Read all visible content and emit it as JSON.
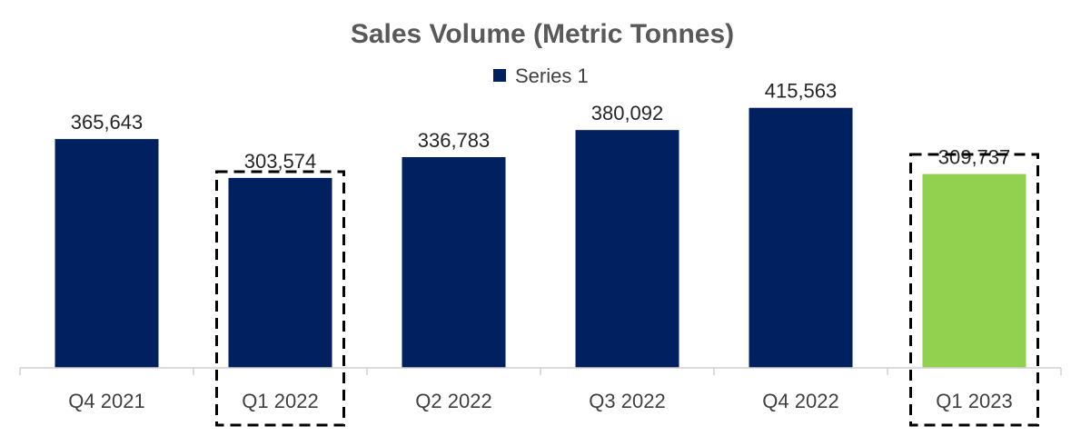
{
  "chart_data": {
    "type": "bar",
    "title": "Sales Volume (Metric Tonnes)",
    "categories": [
      "Q4 2021",
      "Q1 2022",
      "Q2 2022",
      "Q3 2022",
      "Q4 2022",
      "Q1 2023"
    ],
    "series": [
      {
        "name": "Series 1",
        "values": [
          365643,
          303574,
          336783,
          380092,
          415563,
          309737
        ],
        "value_labels": [
          "365,643",
          "303,574",
          "336,783",
          "380,092",
          "415,563",
          "309,737"
        ],
        "color": "#002060"
      }
    ],
    "highlight_bar": {
      "category": "Q1 2023",
      "color": "#92D050"
    },
    "dashed_outline_categories": [
      "Q1 2022",
      "Q1 2023"
    ],
    "xlabel": "",
    "ylabel": "",
    "ylim": [
      0,
      450000
    ],
    "grid": false,
    "legend": {
      "position": "top",
      "entries": [
        "Series 1"
      ]
    },
    "axis_color": "#d0d0d0"
  }
}
